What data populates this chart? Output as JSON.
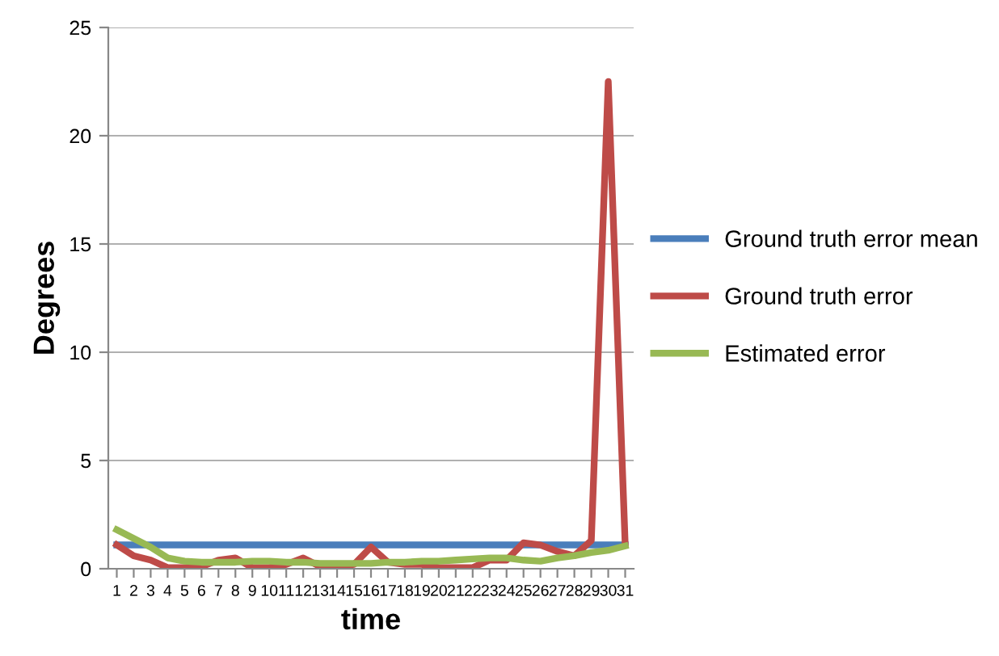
{
  "chart_data": {
    "type": "line",
    "xlabel": "time",
    "ylabel": "Degrees",
    "categories": [
      "1",
      "2",
      "3",
      "4",
      "5",
      "6",
      "7",
      "8",
      "9",
      "10",
      "11",
      "12",
      "13",
      "14",
      "15",
      "16",
      "17",
      "18",
      "19",
      "20",
      "21",
      "22",
      "23",
      "24",
      "25",
      "26",
      "27",
      "28",
      "29",
      "30",
      "31"
    ],
    "series": [
      {
        "name": "Ground truth error mean",
        "color": "#4a7ebb",
        "values": [
          1.1,
          1.1,
          1.1,
          1.1,
          1.1,
          1.1,
          1.1,
          1.1,
          1.1,
          1.1,
          1.1,
          1.1,
          1.1,
          1.1,
          1.1,
          1.1,
          1.1,
          1.1,
          1.1,
          1.1,
          1.1,
          1.1,
          1.1,
          1.1,
          1.1,
          1.1,
          1.1,
          1.1,
          1.1,
          1.1,
          1.1
        ]
      },
      {
        "name": "Ground truth error",
        "color": "#be4b48",
        "values": [
          1.1,
          0.6,
          0.4,
          0.05,
          0.05,
          0.1,
          0.4,
          0.5,
          0.05,
          0.05,
          0.2,
          0.5,
          0.1,
          0.1,
          0.2,
          1.0,
          0.3,
          0.2,
          0.2,
          0.05,
          0.05,
          0.05,
          0.4,
          0.4,
          1.2,
          1.1,
          0.8,
          0.6,
          1.3,
          22.5,
          1.1
        ]
      },
      {
        "name": "Estimated error",
        "color": "#98b954",
        "values": [
          1.8,
          1.4,
          1.0,
          0.5,
          0.35,
          0.3,
          0.3,
          0.3,
          0.35,
          0.35,
          0.3,
          0.3,
          0.25,
          0.25,
          0.25,
          0.25,
          0.3,
          0.3,
          0.35,
          0.35,
          0.4,
          0.45,
          0.5,
          0.5,
          0.4,
          0.35,
          0.5,
          0.6,
          0.75,
          0.85,
          1.05
        ]
      }
    ],
    "ylim": [
      0,
      25
    ],
    "yticks": [
      0,
      5,
      10,
      15,
      20,
      25
    ],
    "grid": "y",
    "legend": "right",
    "marker": "none",
    "line_style": "solid"
  }
}
